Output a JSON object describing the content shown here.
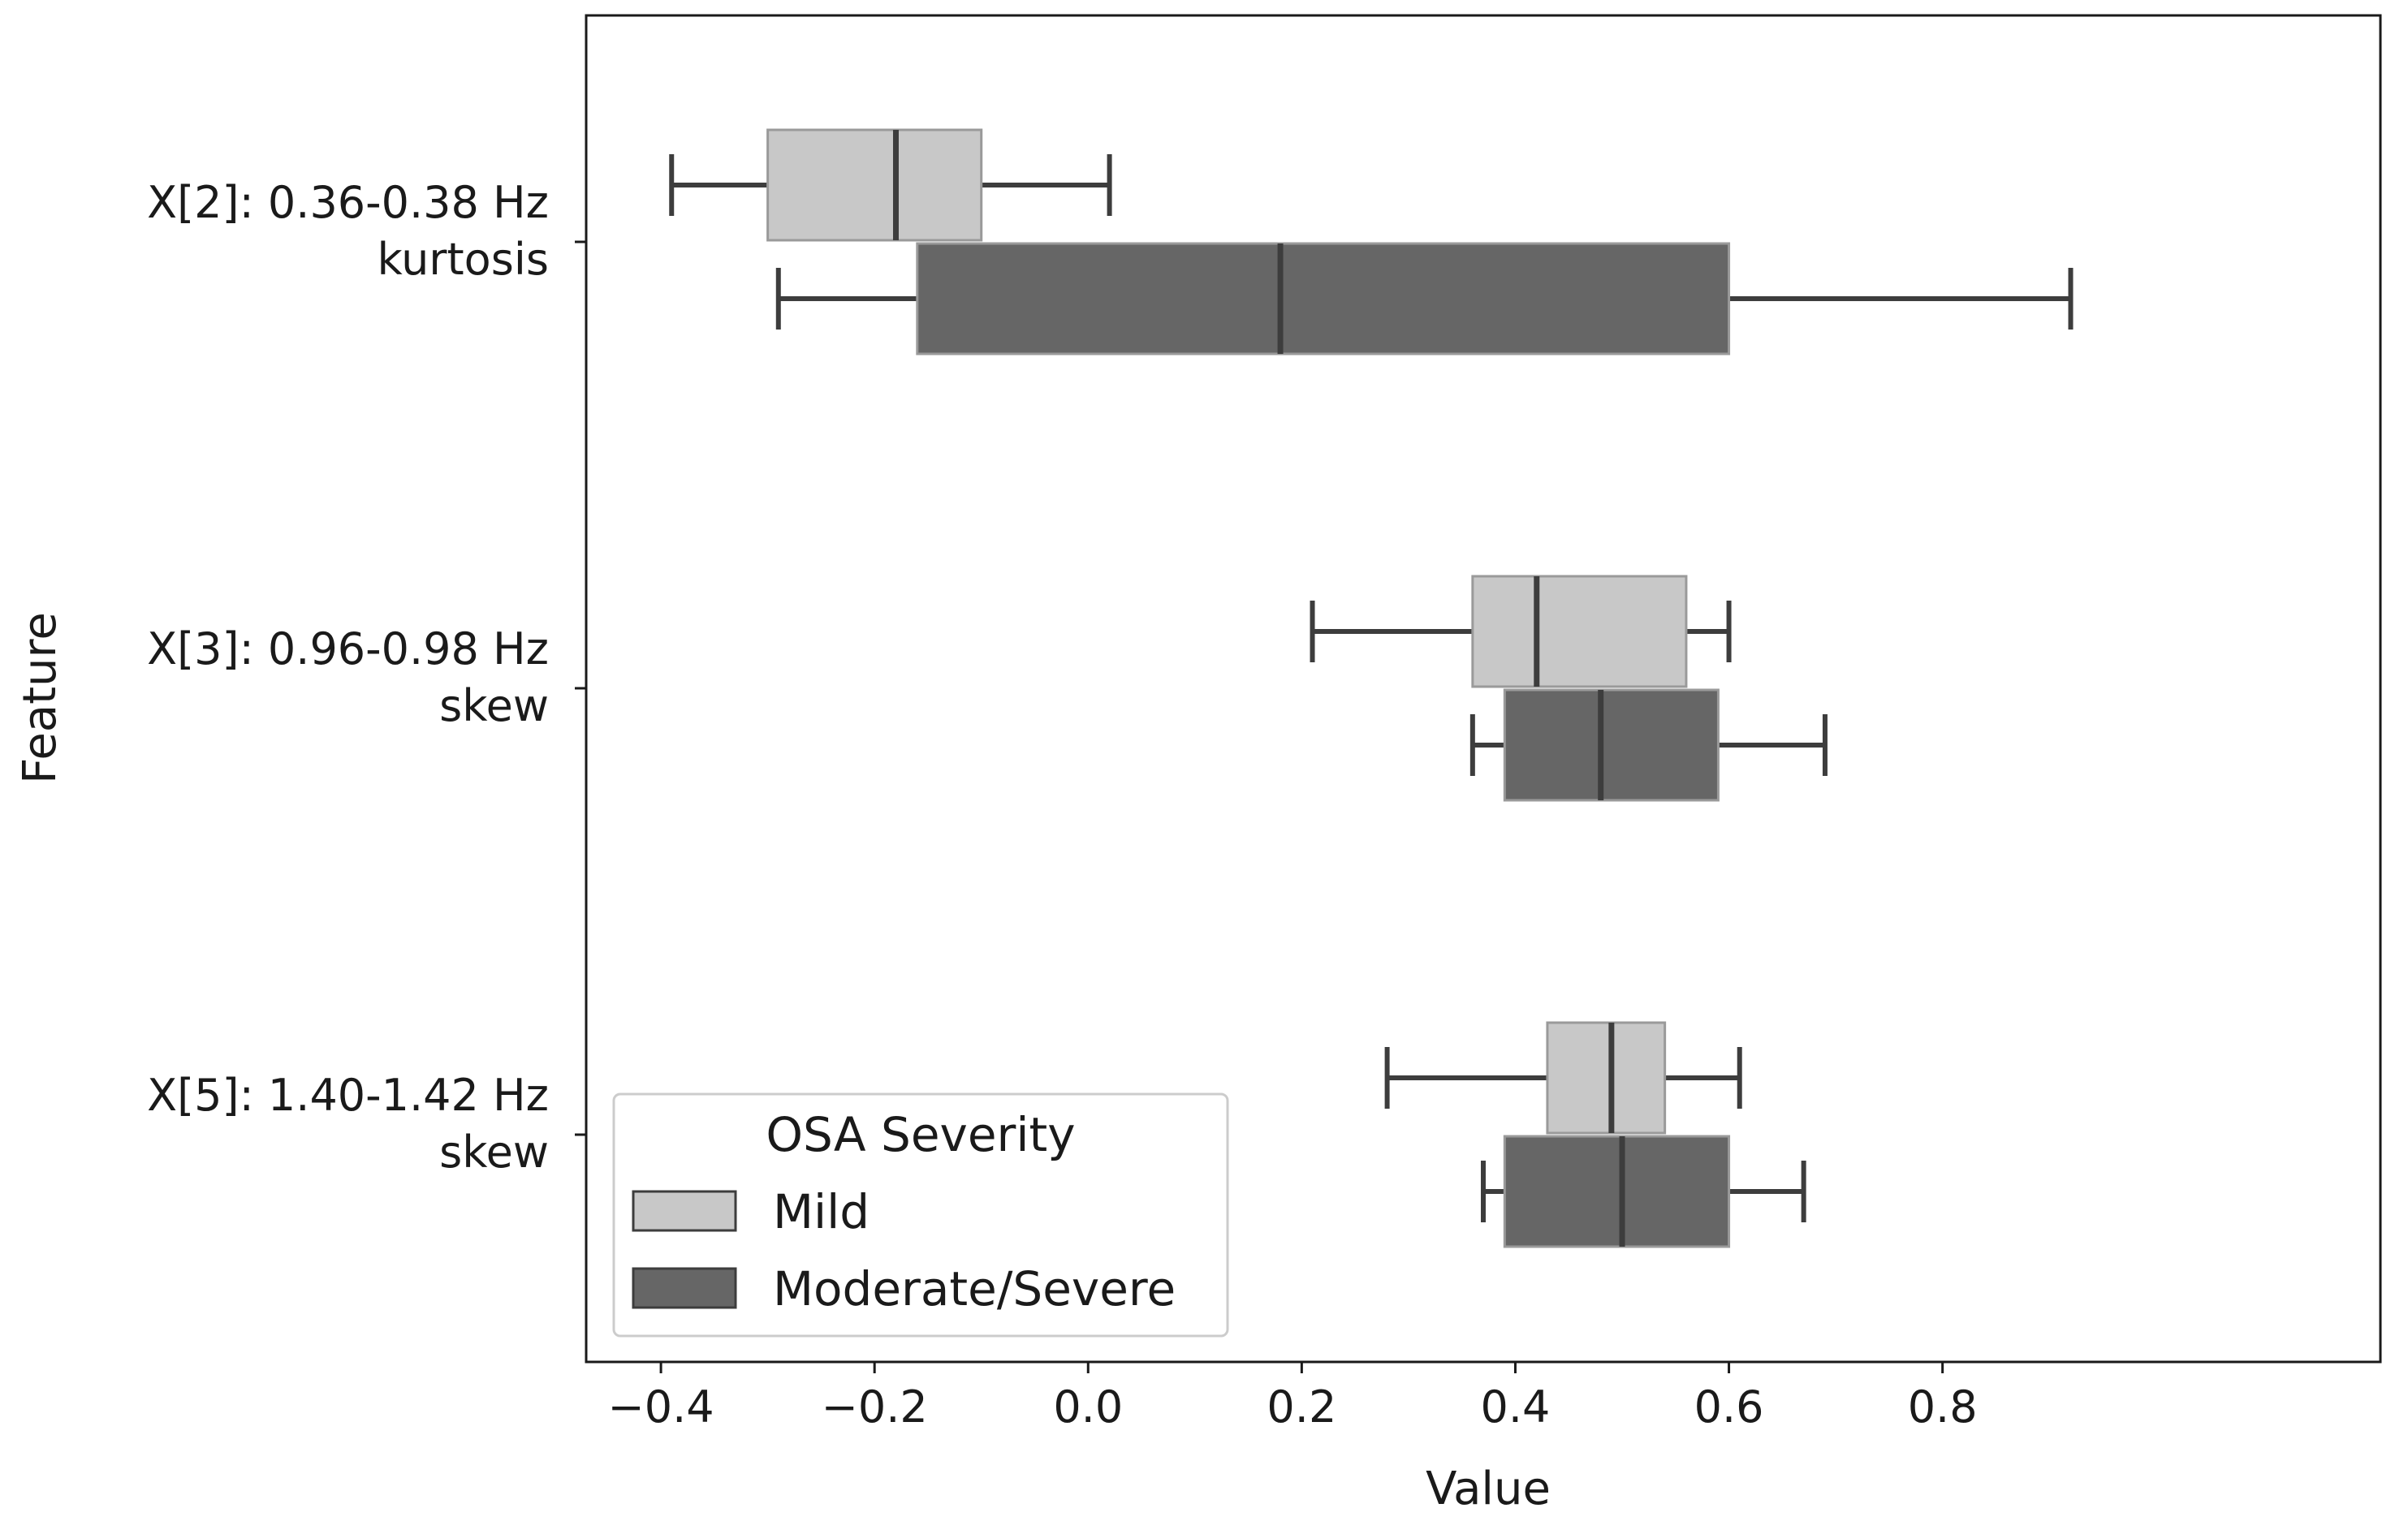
{
  "chart_data": {
    "type": "boxplot",
    "orientation": "horizontal",
    "title": "",
    "xlabel": "Value",
    "ylabel": "Feature",
    "xlim": [
      -0.47,
      1.21
    ],
    "xticks": [
      -0.4,
      -0.2,
      0.0,
      0.2,
      0.4,
      0.6,
      0.8
    ],
    "xtick_labels": [
      "−0.4",
      "−0.2",
      "0.0",
      "0.2",
      "0.4",
      "0.6",
      "0.8"
    ],
    "grid": false,
    "categories": [
      {
        "line1": "X[2]: 0.36-0.38 Hz",
        "line2": "kurtosis"
      },
      {
        "line1": "X[3]: 0.96-0.98 Hz",
        "line2": "skew"
      },
      {
        "line1": "X[5]: 1.40-1.42 Hz",
        "line2": "skew"
      }
    ],
    "legend": {
      "title": "OSA Severity",
      "placement": "lower-left"
    },
    "series": [
      {
        "name": "Mild",
        "color": "#c8c8c8",
        "boxes": [
          {
            "whislo": -0.39,
            "q1": -0.3,
            "med": -0.18,
            "q3": -0.1,
            "whishi": 0.02
          },
          {
            "whislo": 0.21,
            "q1": 0.36,
            "med": 0.42,
            "q3": 0.56,
            "whishi": 0.6
          },
          {
            "whislo": 0.28,
            "q1": 0.43,
            "med": 0.49,
            "q3": 0.54,
            "whishi": 0.61
          }
        ]
      },
      {
        "name": "Moderate/Severe",
        "color": "#666666",
        "boxes": [
          {
            "whislo": -0.29,
            "q1": -0.16,
            "med": 0.18,
            "q3": 0.6,
            "whishi": 0.92
          },
          {
            "whislo": 0.36,
            "q1": 0.39,
            "med": 0.48,
            "q3": 0.59,
            "whishi": 0.69
          },
          {
            "whislo": 0.37,
            "q1": 0.39,
            "med": 0.5,
            "q3": 0.6,
            "whishi": 0.67
          }
        ]
      }
    ],
    "line_color": "#3d3d3d"
  }
}
